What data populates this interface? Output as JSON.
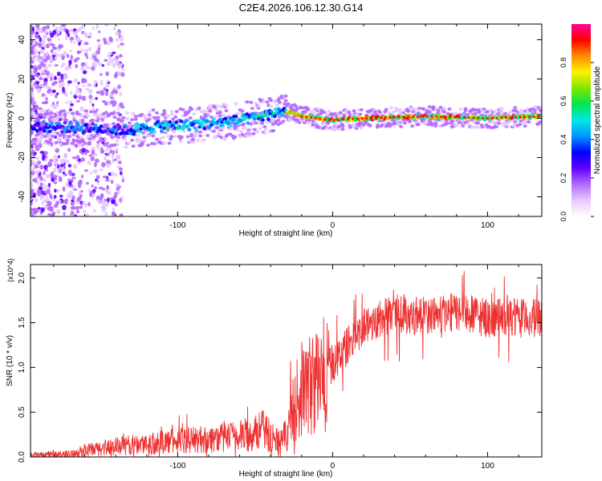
{
  "title": "C2E4.2026.106.12.30.G14",
  "chart_data": [
    {
      "type": "heatmap",
      "xlabel": "Height of straight line (km)",
      "ylabel": "Frequency (Hz)",
      "xlim": [
        -195,
        135
      ],
      "ylim": [
        -50,
        48
      ],
      "xticks": [
        -100,
        0,
        100
      ],
      "xtick_labels": [
        "-100",
        "0",
        "100"
      ],
      "yticks": [
        -40,
        -20,
        0,
        20,
        40
      ],
      "ytick_labels": [
        "-40",
        "-20",
        "0",
        "20",
        "40"
      ],
      "ridge": [
        {
          "x": -195,
          "y": -4
        },
        {
          "x": -160,
          "y": -5
        },
        {
          "x": -130,
          "y": -6
        },
        {
          "x": -110,
          "y": -4
        },
        {
          "x": -85,
          "y": -3
        },
        {
          "x": -60,
          "y": -1
        },
        {
          "x": -45,
          "y": 1
        },
        {
          "x": -32,
          "y": 4
        },
        {
          "x": -20,
          "y": 1
        },
        {
          "x": 0,
          "y": -1
        },
        {
          "x": 20,
          "y": 0
        },
        {
          "x": 60,
          "y": 1
        },
        {
          "x": 100,
          "y": 0
        },
        {
          "x": 135,
          "y": 1
        }
      ],
      "colorbar": {
        "label": "Normalized spectral amplitude",
        "range": [
          0,
          1
        ],
        "ticks": [
          0.0,
          0.2,
          0.4,
          0.6,
          0.8
        ],
        "tick_labels": [
          "0.0",
          "0.2",
          "0.4",
          "0.6",
          "0.8"
        ],
        "colors": [
          "#ffffff",
          "#e6c8ff",
          "#b469ff",
          "#6400ff",
          "#0000ff",
          "#0096ff",
          "#00e6e6",
          "#00e650",
          "#82e600",
          "#fff000",
          "#ff8c00",
          "#ff0000",
          "#ff0096"
        ]
      }
    },
    {
      "type": "line",
      "xlabel": "Height of straight line (km)",
      "ylabel": "SNR (10 * v/v)",
      "exponent_label": "(x10^4)",
      "xlim": [
        -195,
        135
      ],
      "ylim": [
        0,
        2.15
      ],
      "xticks": [
        -100,
        0,
        100
      ],
      "xtick_labels": [
        "-100",
        "0",
        "100"
      ],
      "yticks": [
        0.0,
        0.5,
        1.0,
        1.5,
        2.0
      ],
      "ytick_labels": [
        "0.0",
        "0.5",
        "1.0",
        "1.5",
        "2.0"
      ],
      "color": "#ee3030",
      "series": [
        {
          "name": "SNR",
          "x": [
            -195,
            -170,
            -160,
            -140,
            -120,
            -100,
            -80,
            -60,
            -45,
            -35,
            -30,
            -25,
            -20,
            -10,
            0,
            10,
            20,
            30,
            40,
            60,
            80,
            100,
            120,
            135
          ],
          "y": [
            0.02,
            0.03,
            0.07,
            0.12,
            0.15,
            0.18,
            0.2,
            0.23,
            0.3,
            0.18,
            0.25,
            0.55,
            0.75,
            0.85,
            1.05,
            1.25,
            1.45,
            1.55,
            1.6,
            1.58,
            1.62,
            1.55,
            1.55,
            1.55
          ]
        }
      ]
    }
  ]
}
